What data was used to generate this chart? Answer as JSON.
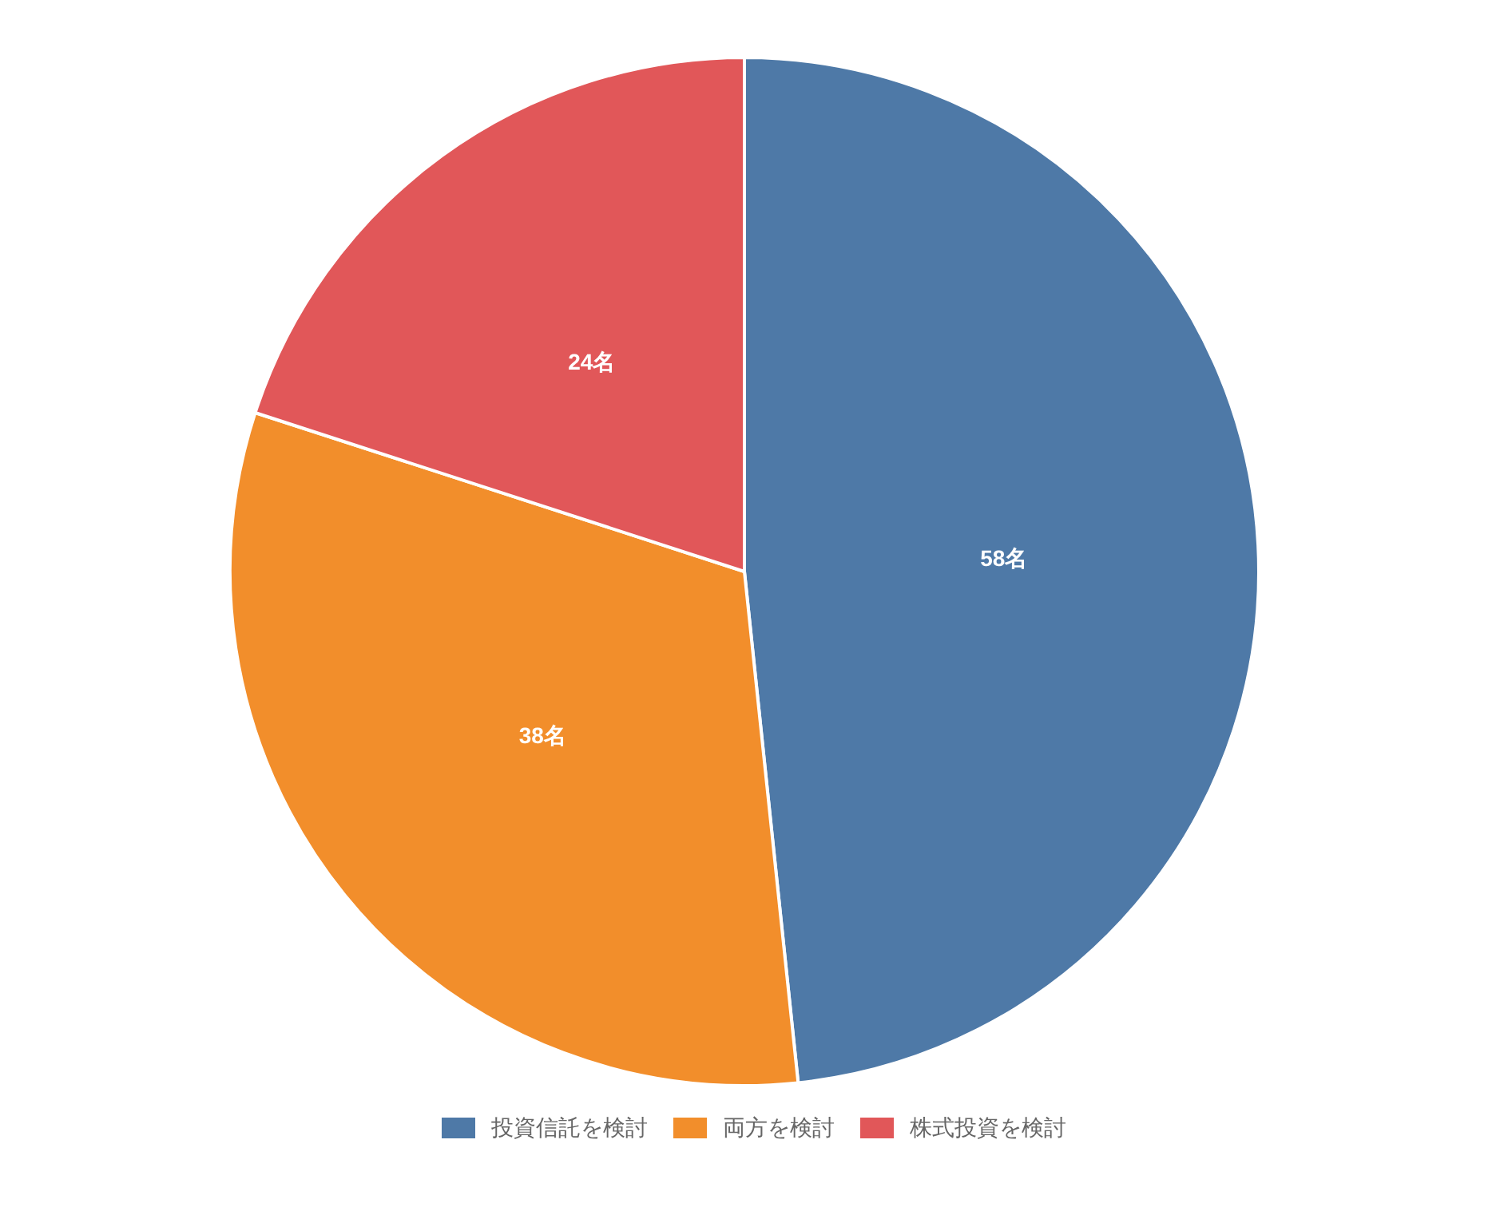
{
  "chart_data": {
    "type": "pie",
    "categories": [
      "投資信託を検討",
      "両方を検討",
      "株式投資を検討"
    ],
    "values": [
      58,
      38,
      24
    ],
    "colors": [
      "#4e79a7",
      "#f28e2b",
      "#e15759"
    ],
    "value_labels": [
      "58名",
      "38名",
      "24名"
    ],
    "legend": "bottom"
  }
}
